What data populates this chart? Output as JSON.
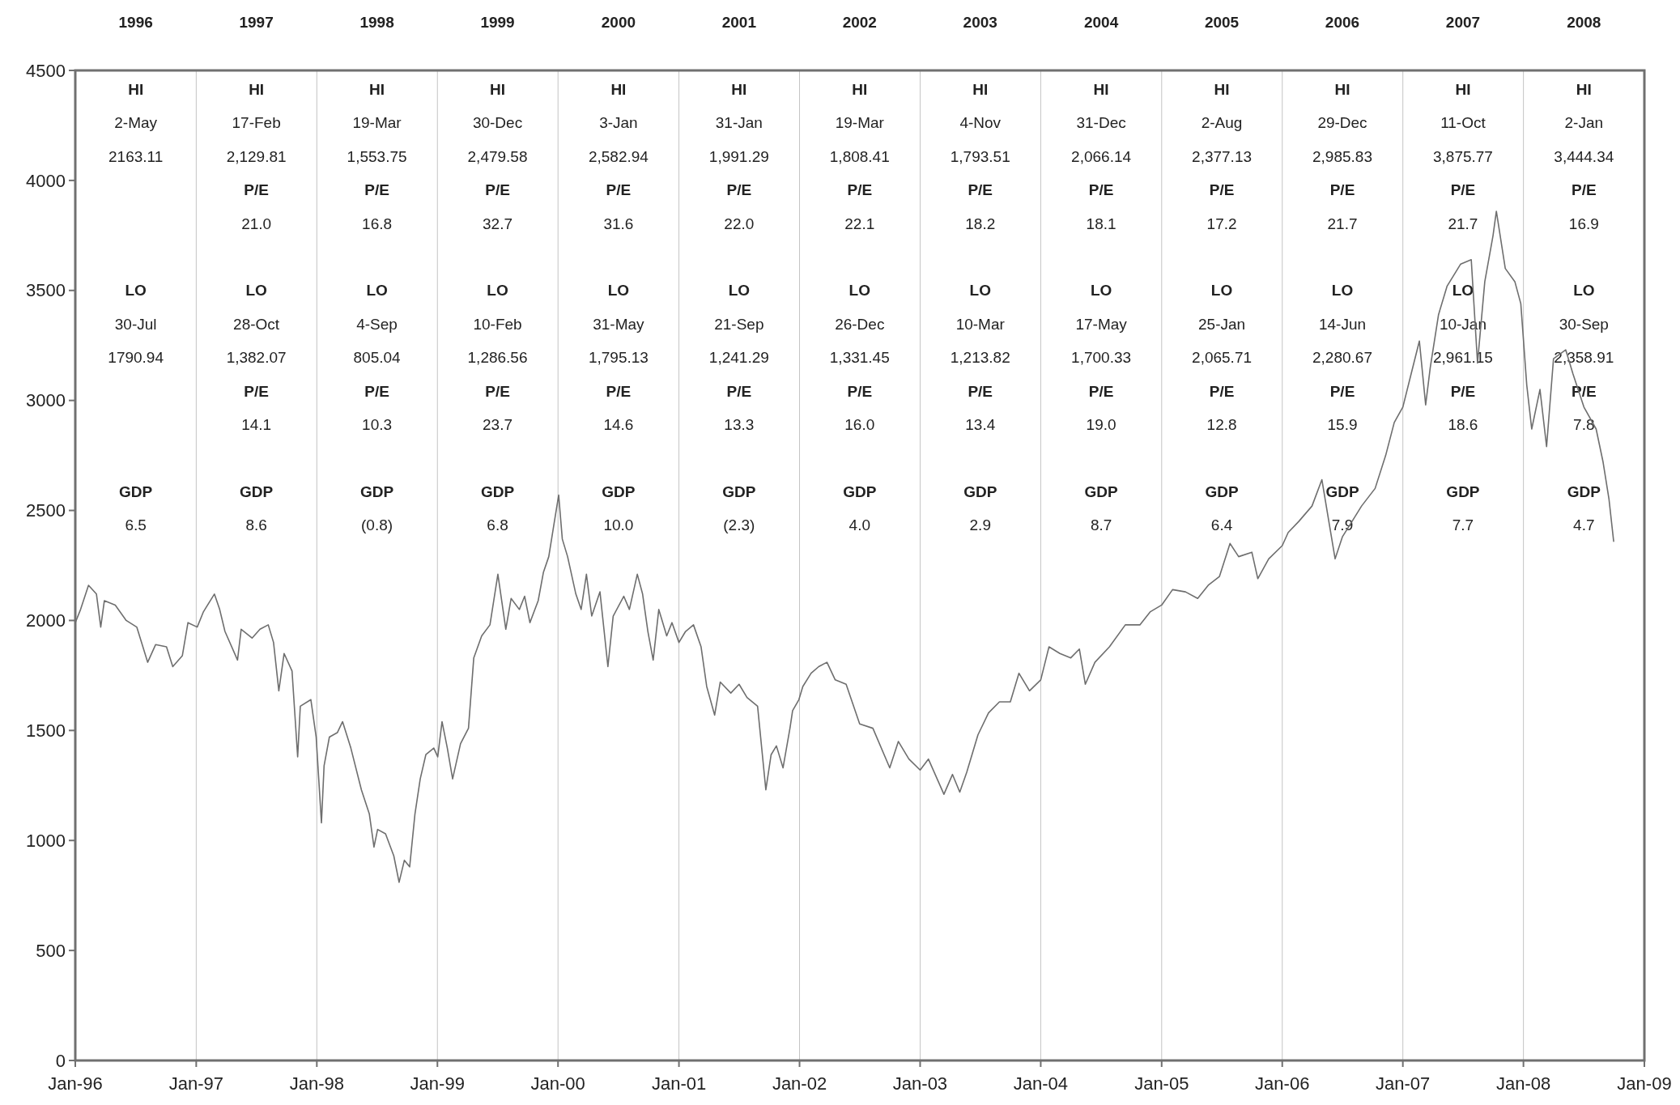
{
  "chart_data": {
    "type": "line",
    "x": [
      "1996-01-01",
      "1996-01-17",
      "1996-02-10",
      "1996-03-05",
      "1996-03-18",
      "1996-03-29",
      "1996-05-01",
      "1996-06-03",
      "1996-07-05",
      "1996-08-07",
      "1996-08-31",
      "1996-10-03",
      "1996-10-22",
      "1996-11-20",
      "1996-12-07",
      "1997-01-04",
      "1997-01-23",
      "1997-02-25",
      "1997-03-13",
      "1997-03-29",
      "1997-05-06",
      "1997-05-17",
      "1997-06-19",
      "1997-07-13",
      "1997-08-07",
      "1997-08-23",
      "1997-09-08",
      "1997-09-24",
      "1997-10-18",
      "1997-11-04",
      "1997-11-12",
      "1997-12-14",
      "1997-12-30",
      "1998-01-15",
      "1998-01-23",
      "1998-02-08",
      "1998-03-04",
      "1998-03-20",
      "1998-04-14",
      "1998-05-16",
      "1998-06-09",
      "1998-06-23",
      "1998-07-04",
      "1998-07-28",
      "1998-08-22",
      "1998-09-07",
      "1998-09-23",
      "1998-10-09",
      "1998-10-25",
      "1998-11-10",
      "1998-11-27",
      "1998-12-21",
      "1999-01-02",
      "1999-01-15",
      "1999-01-31",
      "1999-02-16",
      "1999-03-12",
      "1999-04-05",
      "1999-04-21",
      "1999-05-15",
      "1999-06-09",
      "1999-07-03",
      "1999-07-27",
      "1999-08-12",
      "1999-09-06",
      "1999-09-22",
      "1999-10-08",
      "1999-11-02",
      "1999-11-18",
      "1999-12-04",
      "1999-12-20",
      "2000-01-03",
      "2000-01-14",
      "2000-01-30",
      "2000-02-24",
      "2000-03-11",
      "2000-03-27",
      "2000-04-12",
      "2000-05-07",
      "2000-05-31",
      "2000-06-16",
      "2000-07-18",
      "2000-08-04",
      "2000-08-28",
      "2000-09-13",
      "2000-09-29",
      "2000-10-15",
      "2000-11-01",
      "2000-11-25",
      "2000-12-11",
      "2001-01-01",
      "2001-01-21",
      "2001-02-14",
      "2001-03-09",
      "2001-03-26",
      "2001-04-19",
      "2001-05-06",
      "2001-06-07",
      "2001-07-02",
      "2001-07-26",
      "2001-08-27",
      "2001-09-21",
      "2001-10-07",
      "2001-10-23",
      "2001-11-12",
      "2001-12-03",
      "2001-12-11",
      "2001-12-30",
      "2002-01-11",
      "2002-02-05",
      "2002-02-28",
      "2002-03-25",
      "2002-04-19",
      "2002-05-22",
      "2002-07-02",
      "2002-08-11",
      "2002-10-01",
      "2002-10-27",
      "2002-11-28",
      "2003-01-01",
      "2003-01-26",
      "2003-03-14",
      "2003-04-09",
      "2003-05-01",
      "2003-05-22",
      "2003-06-25",
      "2003-07-27",
      "2003-08-29",
      "2003-10-01",
      "2003-10-27",
      "2003-11-28",
      "2004-01-01",
      "2004-01-26",
      "2004-02-28",
      "2004-04-01",
      "2004-04-27",
      "2004-05-15",
      "2004-06-13",
      "2004-07-27",
      "2004-09-13",
      "2004-10-27",
      "2004-11-28",
      "2005-01-01",
      "2005-02-03",
      "2005-03-14",
      "2005-04-20",
      "2005-05-22",
      "2005-06-25",
      "2005-07-27",
      "2005-08-22",
      "2005-10-01",
      "2005-10-19",
      "2005-11-21",
      "2006-01-01",
      "2006-01-19",
      "2006-02-20",
      "2006-04-01",
      "2006-05-01",
      "2006-05-22",
      "2006-06-10",
      "2006-07-02",
      "2006-07-27",
      "2006-08-29",
      "2006-10-09",
      "2006-11-10",
      "2006-12-06",
      "2007-01-01",
      "2007-01-26",
      "2007-02-20",
      "2007-03-11",
      "2007-03-25",
      "2007-04-19",
      "2007-05-15",
      "2007-06-25",
      "2007-07-27",
      "2007-08-15",
      "2007-09-06",
      "2007-10-01",
      "2007-10-11",
      "2007-11-07",
      "2007-12-06",
      "2007-12-24",
      "2008-01-11",
      "2008-01-26",
      "2008-02-20",
      "2008-03-11",
      "2008-04-01",
      "2008-05-08",
      "2008-05-30",
      "2008-07-02",
      "2008-08-08",
      "2008-08-29",
      "2008-09-16",
      "2008-09-30"
    ],
    "series": [
      {
        "color": "#6e6e6e",
        "values": [
          1990,
          2050,
          2160,
          2120,
          1970,
          2090,
          2070,
          2000,
          1970,
          1810,
          1890,
          1880,
          1790,
          1840,
          1990,
          1970,
          2040,
          2120,
          2050,
          1950,
          1820,
          1960,
          1920,
          1960,
          1980,
          1900,
          1680,
          1850,
          1770,
          1380,
          1610,
          1640,
          1470,
          1080,
          1340,
          1470,
          1490,
          1540,
          1420,
          1230,
          1120,
          970,
          1050,
          1030,
          930,
          810,
          910,
          880,
          1120,
          1280,
          1390,
          1420,
          1380,
          1540,
          1420,
          1280,
          1440,
          1510,
          1830,
          1930,
          1980,
          2210,
          1960,
          2100,
          2050,
          2110,
          1990,
          2090,
          2220,
          2290,
          2440,
          2570,
          2370,
          2290,
          2120,
          2050,
          2210,
          2020,
          2130,
          1790,
          2020,
          2110,
          2050,
          2210,
          2120,
          1950,
          1820,
          2050,
          1930,
          1990,
          1900,
          1950,
          1980,
          1880,
          1700,
          1570,
          1720,
          1670,
          1710,
          1650,
          1610,
          1230,
          1390,
          1430,
          1330,
          1510,
          1590,
          1640,
          1700,
          1760,
          1790,
          1810,
          1730,
          1710,
          1530,
          1510,
          1330,
          1450,
          1370,
          1320,
          1370,
          1210,
          1300,
          1220,
          1310,
          1480,
          1580,
          1630,
          1630,
          1760,
          1680,
          1730,
          1880,
          1850,
          1830,
          1870,
          1710,
          1810,
          1880,
          1980,
          1980,
          2040,
          2070,
          2140,
          2130,
          2100,
          2160,
          2200,
          2350,
          2290,
          2310,
          2190,
          2280,
          2340,
          2400,
          2450,
          2520,
          2640,
          2450,
          2280,
          2380,
          2440,
          2520,
          2600,
          2750,
          2900,
          2970,
          3120,
          3270,
          2980,
          3150,
          3390,
          3520,
          3620,
          3640,
          3170,
          3540,
          3750,
          3860,
          3600,
          3540,
          3440,
          3070,
          2870,
          3050,
          2790,
          3190,
          3230,
          3120,
          2970,
          2870,
          2720,
          2550,
          2360
        ]
      }
    ],
    "xlim": [
      "1996-01-01",
      "2009-01-01"
    ],
    "xticks": [
      {
        "value": "1996-01-01",
        "label": "Jan-96"
      },
      {
        "value": "1997-01-01",
        "label": "Jan-97"
      },
      {
        "value": "1998-01-01",
        "label": "Jan-98"
      },
      {
        "value": "1999-01-01",
        "label": "Jan-99"
      },
      {
        "value": "2000-01-01",
        "label": "Jan-00"
      },
      {
        "value": "2001-01-01",
        "label": "Jan-01"
      },
      {
        "value": "2002-01-01",
        "label": "Jan-02"
      },
      {
        "value": "2003-01-01",
        "label": "Jan-03"
      },
      {
        "value": "2004-01-01",
        "label": "Jan-04"
      },
      {
        "value": "2005-01-01",
        "label": "Jan-05"
      },
      {
        "value": "2006-01-01",
        "label": "Jan-06"
      },
      {
        "value": "2007-01-01",
        "label": "Jan-07"
      },
      {
        "value": "2008-01-01",
        "label": "Jan-08"
      },
      {
        "value": "2009-01-01",
        "label": "Jan-09"
      }
    ],
    "x2lim": [
      "1996-01-01",
      "2009-01-01"
    ],
    "x2ticks": [
      {
        "value": "1996-07-02",
        "label": "1996"
      },
      {
        "value": "1997-07-02",
        "label": "1997"
      },
      {
        "value": "1998-07-02",
        "label": "1998"
      },
      {
        "value": "1999-07-02",
        "label": "1999"
      },
      {
        "value": "2000-07-02",
        "label": "2000"
      },
      {
        "value": "2001-07-02",
        "label": "2001"
      },
      {
        "value": "2002-07-02",
        "label": "2002"
      },
      {
        "value": "2003-07-02",
        "label": "2003"
      },
      {
        "value": "2004-07-02",
        "label": "2004"
      },
      {
        "value": "2005-07-02",
        "label": "2005"
      },
      {
        "value": "2006-07-02",
        "label": "2006"
      },
      {
        "value": "2007-07-02",
        "label": "2007"
      },
      {
        "value": "2008-07-02",
        "label": "2008"
      }
    ],
    "ylim": [
      0,
      4500
    ],
    "yticks": [
      0,
      500,
      1000,
      1500,
      2000,
      2500,
      3000,
      3500,
      4000,
      4500
    ],
    "grid": "x",
    "marker": "none",
    "line_style": "solid",
    "annotations": [
      "HI\n2-May\n2163.11\n\n\n\nLO\n30-Jul\n1790.94\n\n\n\nGDP\n6.5",
      "HI\n17-Feb\n2,129.81\nP/E\n21.0\n\nLO\n28-Oct\n1,382.07\nP/E\n14.1\n\nGDP\n8.6",
      "HI\n19-Mar\n1,553.75\nP/E\n16.8\n\nLO\n4-Sep\n805.04\nP/E\n10.3\n\nGDP\n(0.8)",
      "HI\n30-Dec\n2,479.58\nP/E\n32.7\n\nLO\n10-Feb\n1,286.56\nP/E\n23.7\n\nGDP\n6.8",
      "HI\n3-Jan\n2,582.94\nP/E\n31.6\n\nLO\n31-May\n1,795.13\nP/E\n14.6\n\nGDP\n10.0",
      "HI\n31-Jan\n1,991.29\nP/E\n22.0\n\nLO\n21-Sep\n1,241.29\nP/E\n13.3\n\nGDP\n(2.3)",
      "HI\n19-Mar\n1,808.41\nP/E\n22.1\n\nLO\n26-Dec\n1,331.45\nP/E\n16.0\n\nGDP\n4.0",
      "HI\n4-Nov\n1,793.51\nP/E\n18.2\n\nLO\n10-Mar\n1,213.82\nP/E\n13.4\n\nGDP\n2.9",
      "HI\n31-Dec\n2,066.14\nP/E\n18.1\n\nLO\n17-May\n1,700.33\nP/E\n19.0\n\nGDP\n8.7",
      "HI\n2-Aug\n2,377.13\nP/E\n17.2\n\nLO\n25-Jan\n2,065.71\nP/E\n12.8\n\nGDP\n6.4",
      "HI\n29-Dec\n2,985.83\nP/E\n21.7\n\nLO\n14-Jun\n2,280.67\nP/E\n15.9\n\nGDP\n7.9",
      "HI\n11-Oct\n3,875.77\nP/E\n21.7\n\nLO\n10-Jan\n2,961.15\nP/E\n18.6\n\nGDP\n7.7",
      "HI\n2-Jan\n3,444.34\nP/E\n16.9\n\nLO\n30-Sep\n2,358.91\nP/E\n7.8\n\nGDP\n4.7"
    ]
  }
}
